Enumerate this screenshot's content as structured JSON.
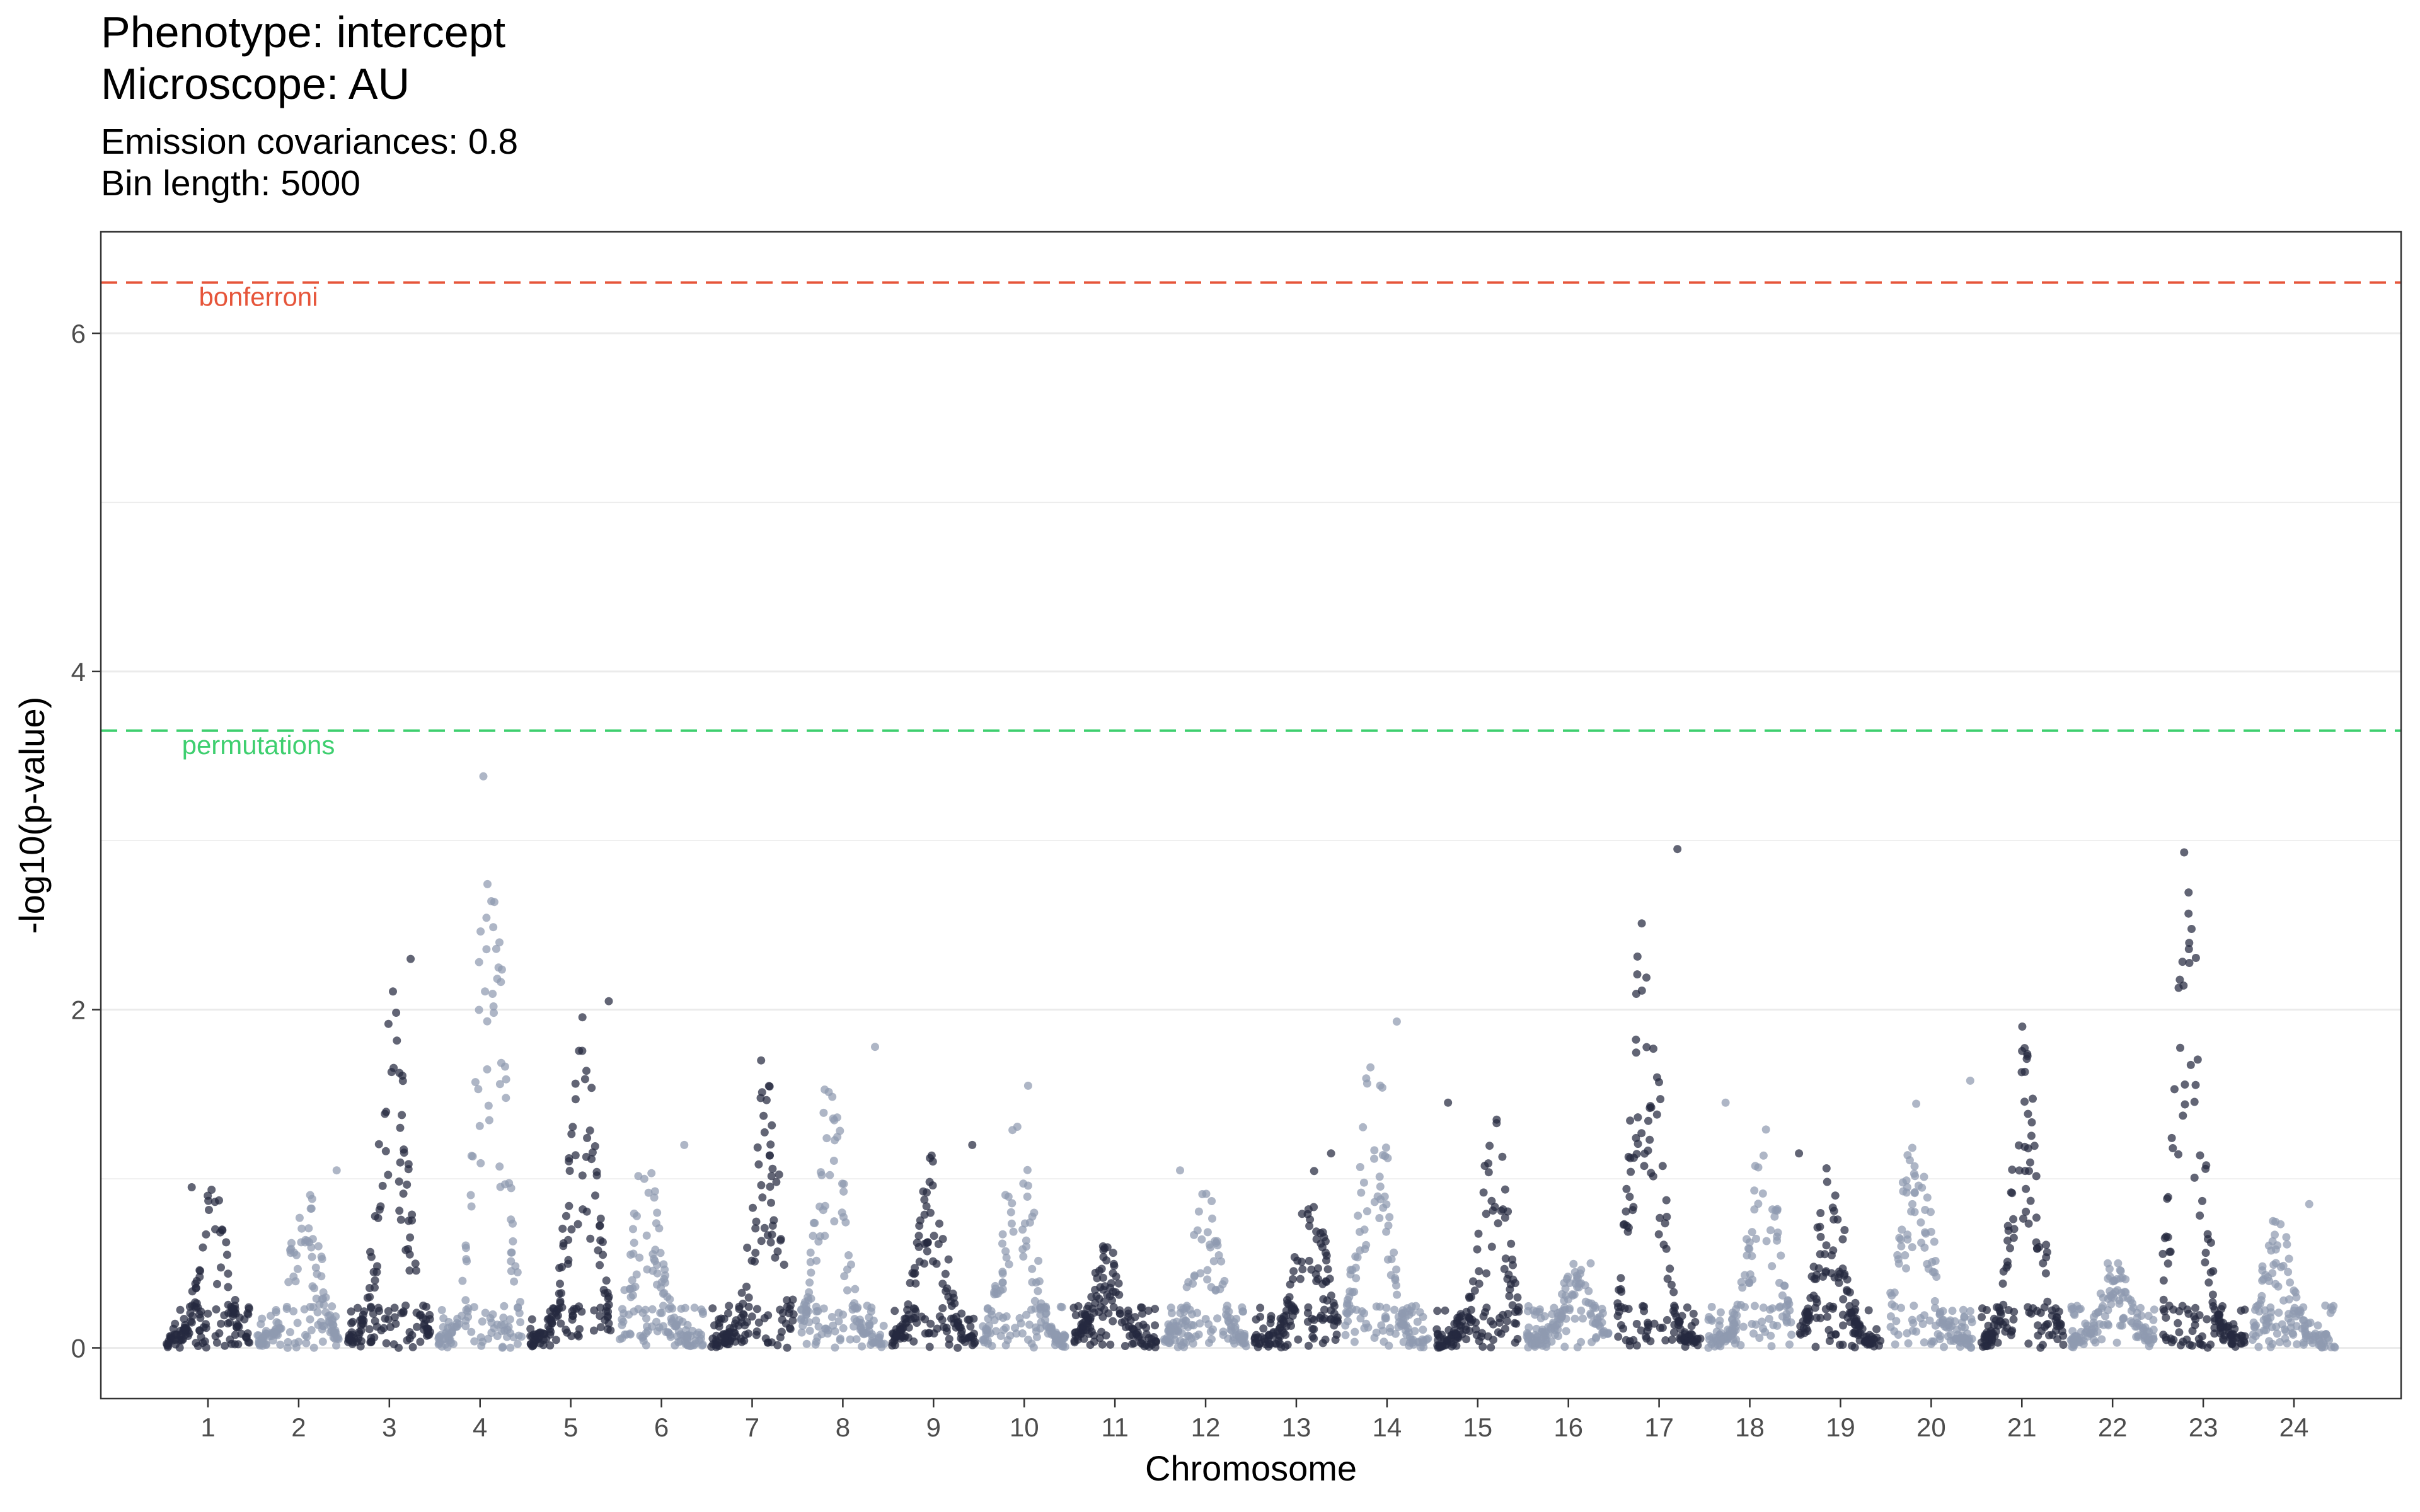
{
  "header": {
    "title_line1": "Phenotype:  intercept",
    "title_line2": "Microscope:  AU",
    "subtitle_line1": "Emission covariances:  0.8",
    "subtitle_line2": "Bin length:  5000"
  },
  "chart_data": {
    "type": "scatter",
    "title": "Phenotype:  intercept\nMicroscope:  AU",
    "subtitle": "Emission covariances:  0.8\nBin length:  5000",
    "xlabel": "Chromosome",
    "ylabel": "-log10(p-value)",
    "ylim": [
      -0.3,
      6.6
    ],
    "y_ticks": [
      0,
      2,
      4,
      6
    ],
    "grid": "horizontal major and minor",
    "colors": {
      "dark": "#262a40",
      "light": "#8f9ab0",
      "bonferroni": "#e6553a",
      "permutations": "#3ecf6f",
      "grid": "#ebebeb",
      "axis": "#333333"
    },
    "chromosomes": [
      {
        "label": "1",
        "peak": 0.95,
        "color": "dark"
      },
      {
        "label": "2",
        "peak": 1.05,
        "color": "light"
      },
      {
        "label": "3",
        "peak": 2.3,
        "color": "dark"
      },
      {
        "label": "4",
        "peak": 3.38,
        "color": "light"
      },
      {
        "label": "5",
        "peak": 2.05,
        "color": "dark"
      },
      {
        "label": "6",
        "peak": 1.2,
        "color": "light"
      },
      {
        "label": "7",
        "peak": 1.7,
        "color": "dark"
      },
      {
        "label": "8",
        "peak": 1.78,
        "color": "light"
      },
      {
        "label": "9",
        "peak": 1.2,
        "color": "dark"
      },
      {
        "label": "10",
        "peak": 1.55,
        "color": "light"
      },
      {
        "label": "11",
        "peak": 0.6,
        "color": "dark"
      },
      {
        "label": "12",
        "peak": 1.05,
        "color": "light"
      },
      {
        "label": "13",
        "peak": 1.15,
        "color": "dark"
      },
      {
        "label": "14",
        "peak": 1.93,
        "color": "light"
      },
      {
        "label": "15",
        "peak": 1.45,
        "color": "dark"
      },
      {
        "label": "16",
        "peak": 0.5,
        "color": "light"
      },
      {
        "label": "17",
        "peak": 2.95,
        "color": "dark"
      },
      {
        "label": "18",
        "peak": 1.45,
        "color": "light"
      },
      {
        "label": "19",
        "peak": 1.15,
        "color": "dark"
      },
      {
        "label": "20",
        "peak": 1.58,
        "color": "light"
      },
      {
        "label": "21",
        "peak": 1.9,
        "color": "dark"
      },
      {
        "label": "22",
        "peak": 0.5,
        "color": "light"
      },
      {
        "label": "23",
        "peak": 2.93,
        "color": "dark"
      },
      {
        "label": "24",
        "peak": 0.85,
        "color": "light"
      }
    ],
    "thresholds": [
      {
        "name": "bonferroni",
        "value": 6.3
      },
      {
        "name": "permutations",
        "value": 3.65
      }
    ]
  }
}
